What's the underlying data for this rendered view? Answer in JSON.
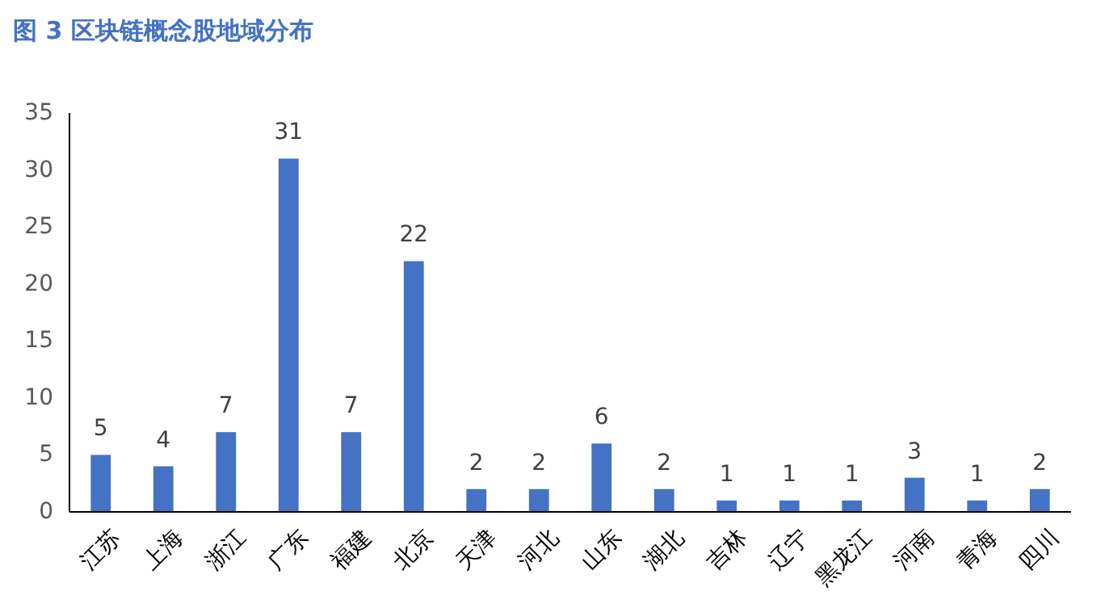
{
  "chart_data": {
    "type": "bar",
    "title": "图 3 区块链概念股地域分布",
    "categories": [
      "江苏",
      "上海",
      "浙江",
      "广东",
      "福建",
      "北京",
      "天津",
      "河北",
      "山东",
      "湖北",
      "吉林",
      "辽宁",
      "黑龙江",
      "河南",
      "青海",
      "四川"
    ],
    "values": [
      5,
      4,
      7,
      31,
      7,
      22,
      2,
      2,
      6,
      2,
      1,
      1,
      1,
      3,
      1,
      2
    ],
    "color": "#4472c4",
    "ylim": [
      0,
      35
    ],
    "yticks": [
      0,
      5,
      10,
      15,
      20,
      25,
      30,
      35
    ],
    "grid": false,
    "data_labels": true
  }
}
